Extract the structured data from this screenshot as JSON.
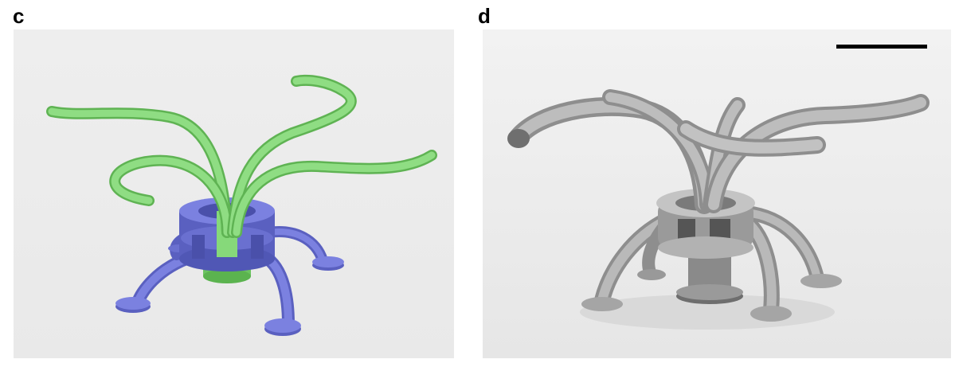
{
  "figure": {
    "panel_c": {
      "label": "c",
      "background_color": "#eeeeee",
      "rendering_colors": {
        "green_structure": "#86d97a",
        "blue_structure": "#7177d6"
      }
    },
    "panel_d": {
      "label": "d",
      "background_color": "#ececec",
      "structure_color": "#b3b3b3",
      "scale_bar_color": "#000000"
    }
  }
}
